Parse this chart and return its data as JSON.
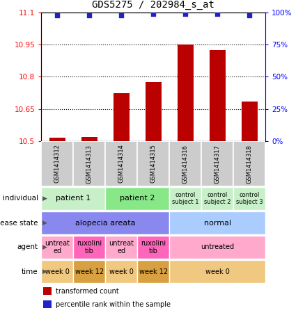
{
  "title": "GDS5275 / 202984_s_at",
  "samples": [
    "GSM1414312",
    "GSM1414313",
    "GSM1414314",
    "GSM1414315",
    "GSM1414316",
    "GSM1414317",
    "GSM1414318"
  ],
  "bar_values": [
    10.515,
    10.52,
    10.725,
    10.775,
    10.952,
    10.925,
    10.685
  ],
  "dot_values": [
    98,
    98,
    98,
    99,
    99,
    99,
    98
  ],
  "bar_baseline": 10.5,
  "ylim_left": [
    10.5,
    11.1
  ],
  "ylim_right": [
    0,
    100
  ],
  "yticks_left": [
    10.5,
    10.65,
    10.8,
    10.95,
    11.1
  ],
  "yticks_right": [
    0,
    25,
    50,
    75,
    100
  ],
  "bar_color": "#bb0000",
  "dot_color": "#2222cc",
  "bar_width": 0.5,
  "annotation_rows": [
    {
      "label": "individual",
      "cells": [
        {
          "text": "patient 1",
          "span": 2,
          "color": "#c8f0c8",
          "fontsize": 8
        },
        {
          "text": "patient 2",
          "span": 2,
          "color": "#88e888",
          "fontsize": 8
        },
        {
          "text": "control\nsubject 1",
          "span": 1,
          "color": "#c8f0c8",
          "fontsize": 6
        },
        {
          "text": "control\nsubject 2",
          "span": 1,
          "color": "#c8f0c8",
          "fontsize": 6
        },
        {
          "text": "control\nsubject 3",
          "span": 1,
          "color": "#c8f0c8",
          "fontsize": 6
        }
      ]
    },
    {
      "label": "disease state",
      "cells": [
        {
          "text": "alopecia areata",
          "span": 4,
          "color": "#8888ee",
          "fontsize": 8
        },
        {
          "text": "normal",
          "span": 3,
          "color": "#aaccff",
          "fontsize": 8
        }
      ]
    },
    {
      "label": "agent",
      "cells": [
        {
          "text": "untreat\ned",
          "span": 1,
          "color": "#ffaacc",
          "fontsize": 7
        },
        {
          "text": "ruxolini\ntib",
          "span": 1,
          "color": "#ff66bb",
          "fontsize": 7
        },
        {
          "text": "untreat\ned",
          "span": 1,
          "color": "#ffaacc",
          "fontsize": 7
        },
        {
          "text": "ruxolini\ntib",
          "span": 1,
          "color": "#ff66bb",
          "fontsize": 7
        },
        {
          "text": "untreated",
          "span": 3,
          "color": "#ffaacc",
          "fontsize": 7
        }
      ]
    },
    {
      "label": "time",
      "cells": [
        {
          "text": "week 0",
          "span": 1,
          "color": "#f0c880",
          "fontsize": 7
        },
        {
          "text": "week 12",
          "span": 1,
          "color": "#d8a040",
          "fontsize": 7
        },
        {
          "text": "week 0",
          "span": 1,
          "color": "#f0c880",
          "fontsize": 7
        },
        {
          "text": "week 12",
          "span": 1,
          "color": "#d8a040",
          "fontsize": 7
        },
        {
          "text": "week 0",
          "span": 3,
          "color": "#f0c880",
          "fontsize": 7
        }
      ]
    }
  ],
  "legend": [
    {
      "color": "#bb0000",
      "label": "transformed count"
    },
    {
      "color": "#2222cc",
      "label": "percentile rank within the sample"
    }
  ],
  "fig_width": 4.38,
  "fig_height": 4.53,
  "dpi": 100
}
